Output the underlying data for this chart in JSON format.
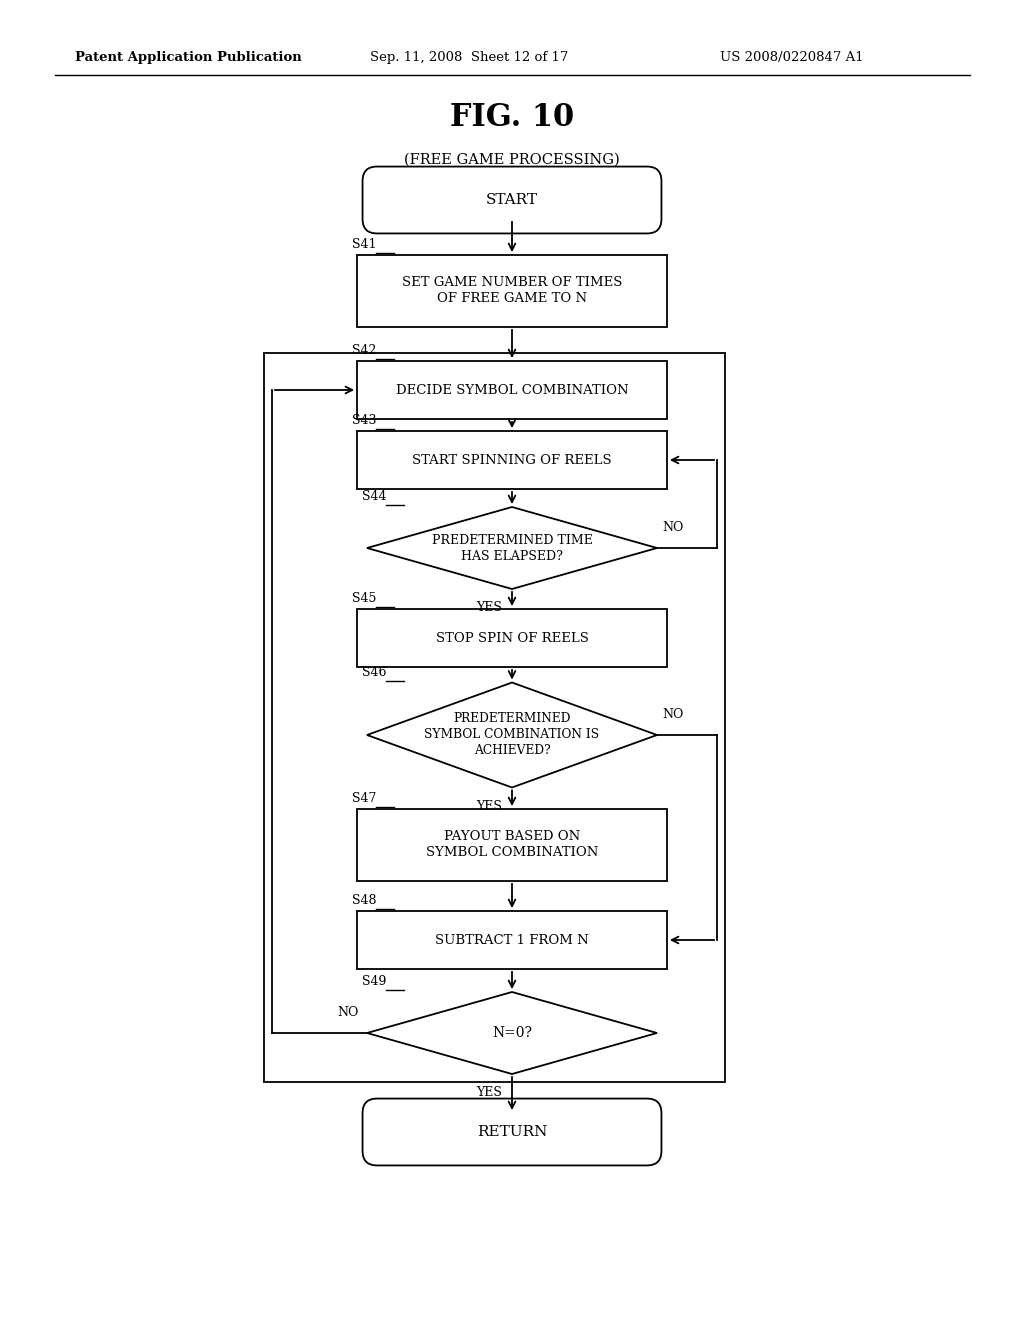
{
  "bg_color": "#ffffff",
  "header_left": "Patent Application Publication",
  "header_mid": "Sep. 11, 2008  Sheet 12 of 17",
  "header_right": "US 2008/0220847 A1",
  "fig_title": "FIG. 10",
  "fig_subtitle": "(FREE GAME PROCESSING)"
}
